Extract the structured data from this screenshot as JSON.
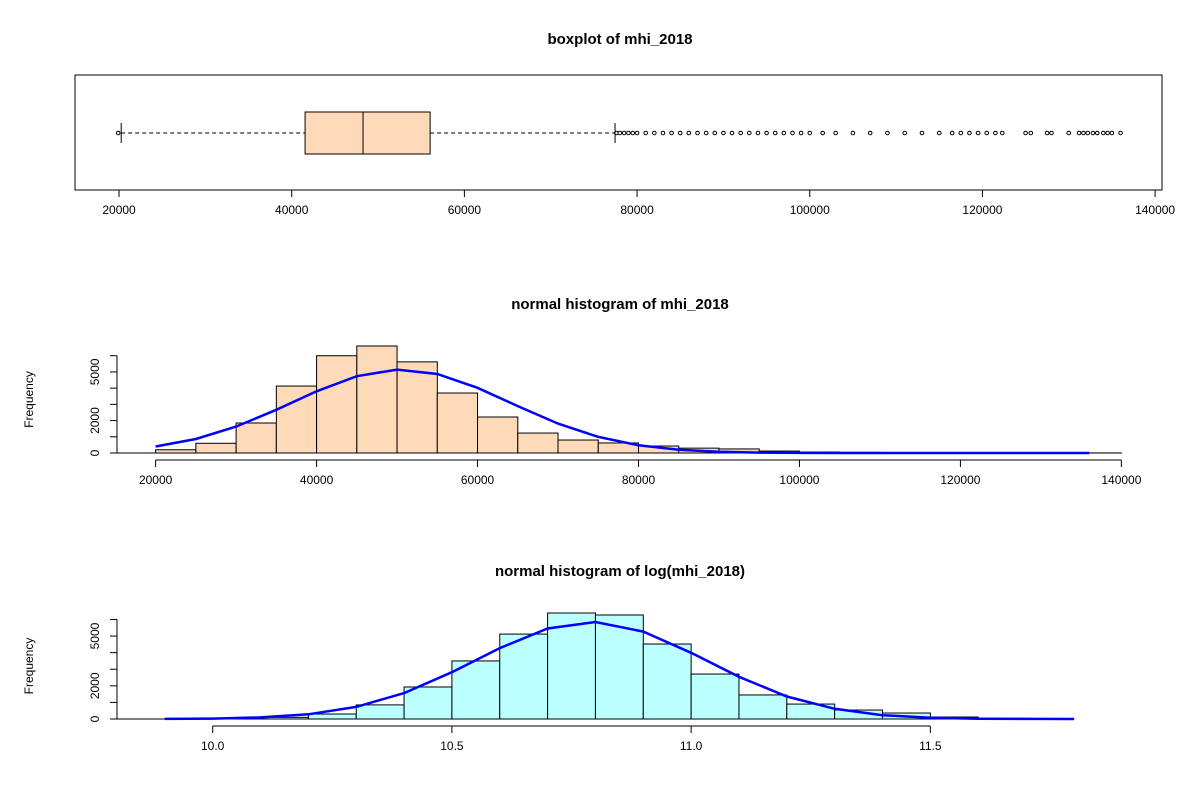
{
  "chart_data": [
    {
      "type": "boxplot",
      "title": "boxplot of mhi_2018",
      "color": "#ffdab9",
      "whisker_low": 20250,
      "q1": 41550,
      "median": 48260,
      "q3": 56030,
      "whisker_high": 77450,
      "outliers": [
        19900,
        77600,
        78000,
        78500,
        79000,
        79500,
        80000,
        81000,
        82000,
        83000,
        84000,
        85000,
        86000,
        87000,
        88000,
        89000,
        90000,
        91000,
        92000,
        93000,
        94000,
        95000,
        96000,
        97000,
        98000,
        99000,
        100000,
        101500,
        103000,
        105000,
        107000,
        109000,
        111000,
        113000,
        115000,
        116500,
        117500,
        118500,
        119500,
        120500,
        121500,
        122300,
        125000,
        125600,
        127500,
        128000,
        130000,
        131200,
        131700,
        132200,
        132800,
        133300,
        134000,
        134500,
        135000,
        136000
      ],
      "xlim": [
        14900,
        140800
      ],
      "xticks": [
        20000,
        40000,
        60000,
        80000,
        100000,
        120000,
        140000
      ]
    },
    {
      "type": "histogram",
      "title": "normal histogram of mhi_2018",
      "ylabel": "Frequency",
      "color": "#ffdab9",
      "bins": [
        20000,
        25000,
        30000,
        35000,
        40000,
        45000,
        50000,
        55000,
        60000,
        65000,
        70000,
        75000,
        80000,
        85000,
        90000,
        95000,
        100000,
        105000,
        110000,
        115000,
        120000,
        125000,
        130000,
        135000,
        140000
      ],
      "counts": [
        200,
        600,
        1850,
        4130,
        6000,
        6600,
        5620,
        3700,
        2220,
        1230,
        800,
        620,
        430,
        300,
        250,
        120,
        60,
        40,
        25,
        20,
        10,
        5,
        5,
        5
      ],
      "curve_color": "#0000ff",
      "curve_x": [
        20000,
        25000,
        30000,
        35000,
        40000,
        45000,
        50000,
        55000,
        60000,
        65000,
        70000,
        75000,
        80000,
        85000,
        90000,
        95000,
        100000,
        105000,
        110000,
        120000,
        136000
      ],
      "curve_y": [
        401,
        865,
        1626,
        2664,
        3808,
        4740,
        5146,
        4872,
        4020,
        2893,
        1815,
        992,
        473,
        197,
        71,
        22,
        6,
        2,
        0,
        0,
        0
      ],
      "xlim": [
        15200,
        144800
      ],
      "ylim": [
        0,
        6600
      ],
      "xticks": [
        20000,
        40000,
        60000,
        80000,
        100000,
        120000,
        140000
      ],
      "yticks": [
        0,
        2000,
        5000
      ],
      "yminor": [
        1000,
        3000,
        4000,
        6000
      ]
    },
    {
      "type": "histogram",
      "title": "normal histogram of log(mhi_2018)",
      "ylabel": "Frequency",
      "color": "#bbffff",
      "bins": [
        9.9,
        10,
        10.1,
        10.2,
        10.3,
        10.4,
        10.5,
        10.6,
        10.7,
        10.8,
        10.9,
        11,
        11.1,
        11.2,
        11.3,
        11.4,
        11.5,
        11.6,
        11.7,
        11.8
      ],
      "counts": [
        10,
        40,
        100,
        300,
        850,
        1930,
        3500,
        5120,
        6390,
        6270,
        4520,
        2710,
        1450,
        900,
        540,
        360,
        120,
        40,
        10
      ],
      "curve_color": "#0000ff",
      "curve_x": [
        9.9,
        10,
        10.1,
        10.2,
        10.3,
        10.4,
        10.5,
        10.6,
        10.7,
        10.8,
        10.9,
        11,
        11.1,
        11.2,
        11.3,
        11.4,
        11.5,
        11.6,
        11.7,
        11.8
      ],
      "curve_y": [
        6,
        26,
        94,
        285,
        728,
        1563,
        2819,
        4277,
        5453,
        5845,
        5267,
        3989,
        2541,
        1359,
        612,
        231,
        74,
        20,
        4,
        1
      ],
      "xlim": [
        9.8,
        11.98
      ],
      "ylim": [
        0,
        6390
      ],
      "xticks": [
        {
          "value": 10,
          "label": "10.0"
        },
        10.5,
        {
          "value": 11,
          "label": "11.0"
        },
        11.5
      ],
      "yticks": [
        0,
        2000,
        5000
      ],
      "yminor": [
        1000,
        3000,
        4000,
        6000
      ]
    }
  ]
}
